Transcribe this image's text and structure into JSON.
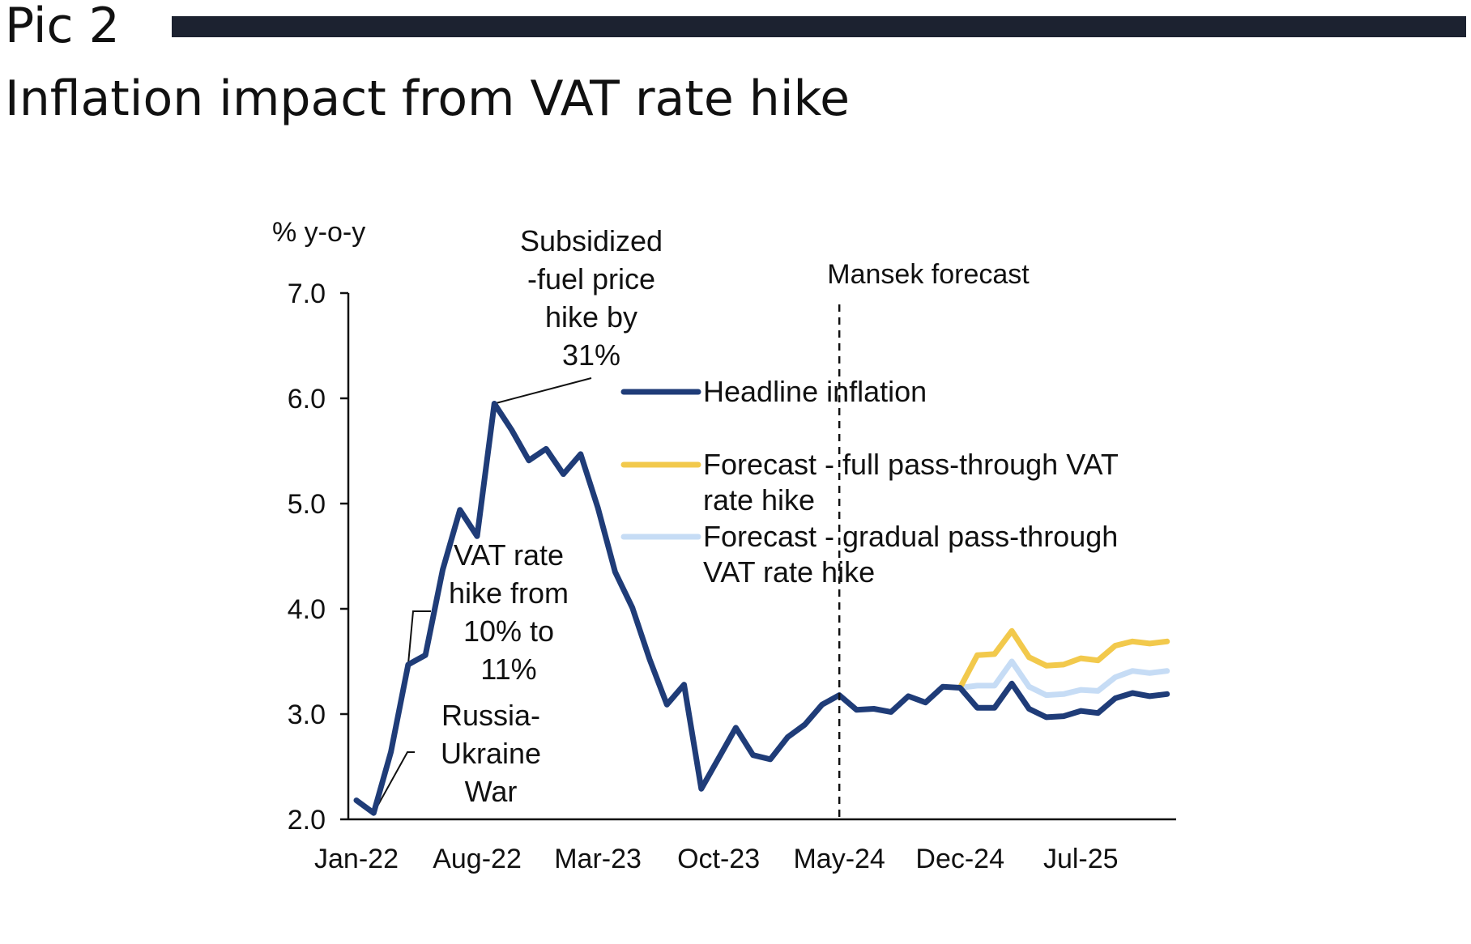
{
  "header": {
    "pic_label": "Pic 2",
    "title": "Inflation impact from VAT rate hike"
  },
  "chart_data": {
    "type": "line",
    "title": "",
    "ylabel": "% y-o-y",
    "xlabel": "",
    "ylim": [
      2.0,
      7.0
    ],
    "yticks": [
      "7.0",
      "6.0",
      "5.0",
      "4.0",
      "3.0",
      "2.0"
    ],
    "x_start": "Jan-22",
    "x_end": "Dec-25",
    "xtick_labels": [
      "Jan-22",
      "Aug-22",
      "Mar-23",
      "Oct-23",
      "May-24",
      "Dec-24",
      "Jul-25"
    ],
    "forecast_start": "May-24",
    "forecast_label": "Mansek forecast",
    "grid": false,
    "legend_position": "right-center",
    "colors": {
      "headline": "#1f3c78",
      "full_pass_through": "#f2c94c",
      "gradual_pass_through": "#c6dcf5"
    },
    "series": [
      {
        "name": "Headline inflation",
        "key": "headline",
        "values": [
          2.18,
          2.06,
          2.64,
          3.47,
          3.56,
          4.37,
          4.94,
          4.69,
          5.95,
          5.7,
          5.41,
          5.52,
          5.28,
          5.47,
          4.96,
          4.35,
          4.01,
          3.52,
          3.09,
          3.28,
          2.29,
          2.58,
          2.87,
          2.61,
          2.57,
          2.78,
          2.9,
          3.09,
          3.18,
          3.04,
          3.05,
          3.02,
          3.17,
          3.11,
          3.26,
          3.25,
          3.06,
          3.06,
          3.29,
          3.05,
          2.97,
          2.98,
          3.03,
          3.01,
          3.15,
          3.2,
          3.17,
          3.19
        ]
      },
      {
        "name": "Forecast - full pass-through VAT rate hike",
        "key": "full_pass_through",
        "start_index": 35,
        "values": [
          3.25,
          3.56,
          3.57,
          3.79,
          3.54,
          3.46,
          3.47,
          3.53,
          3.51,
          3.65,
          3.69,
          3.67,
          3.69
        ]
      },
      {
        "name": "Forecast - gradual pass-through VAT rate hike",
        "key": "gradual_pass_through",
        "start_index": 35,
        "values": [
          3.25,
          3.27,
          3.27,
          3.5,
          3.26,
          3.18,
          3.19,
          3.23,
          3.22,
          3.35,
          3.41,
          3.39,
          3.41
        ]
      }
    ],
    "annotations": [
      {
        "key": "fuel",
        "text": [
          "Subsidized",
          "-fuel price",
          "hike by",
          "31%"
        ],
        "points_to_index": 8
      },
      {
        "key": "vat",
        "text": [
          "VAT rate",
          "hike from",
          "10% to",
          "11%"
        ],
        "points_to_index": 3
      },
      {
        "key": "war",
        "text": [
          "Russia-",
          "Ukraine",
          "War"
        ],
        "points_to_index": 1
      }
    ]
  }
}
